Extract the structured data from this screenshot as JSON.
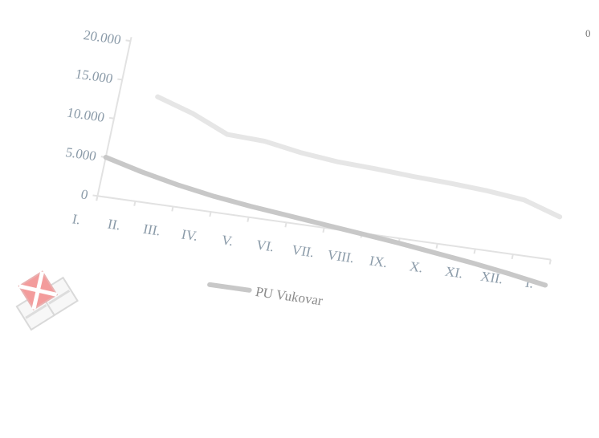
{
  "corner_label": "0",
  "colors": {
    "series_1": "#e6e6e6",
    "series_2": "#c8c8c8",
    "axis": "#e2e2e2",
    "tick_text": "#8a9aa8",
    "logo_accent": "#f39c9c"
  },
  "logo": {
    "icon": "flag-logo-icon"
  },
  "chart_data": {
    "type": "line",
    "title": "",
    "xlabel": "",
    "ylabel": "",
    "categories": [
      "I.",
      "II.",
      "III.",
      "IV.",
      "V.",
      "VI.",
      "VII.",
      "VIII.",
      "IX.",
      "X.",
      "XI.",
      "XII.",
      "I."
    ],
    "ylim": [
      0,
      20000
    ],
    "yticks": [
      0,
      5000,
      10000,
      15000,
      20000
    ],
    "ytick_labels": [
      "0",
      "5.000",
      "10.000",
      "15.000",
      "20.000"
    ],
    "grid": false,
    "legend_position": "bottom",
    "series": [
      {
        "values": [
          null,
          13500,
          12000,
          10000,
          9800,
          9000,
          8500,
          8300,
          8000,
          7800,
          7500,
          7000,
          5500
        ],
        "color": "#e6e6e6"
      },
      {
        "name": "PU Vukovar",
        "values": [
          5000,
          3800,
          2800,
          2000,
          1400,
          900,
          400,
          -100,
          -600,
          -1200,
          -1800,
          -2500,
          -3300
        ],
        "color": "#c8c8c8"
      }
    ]
  }
}
